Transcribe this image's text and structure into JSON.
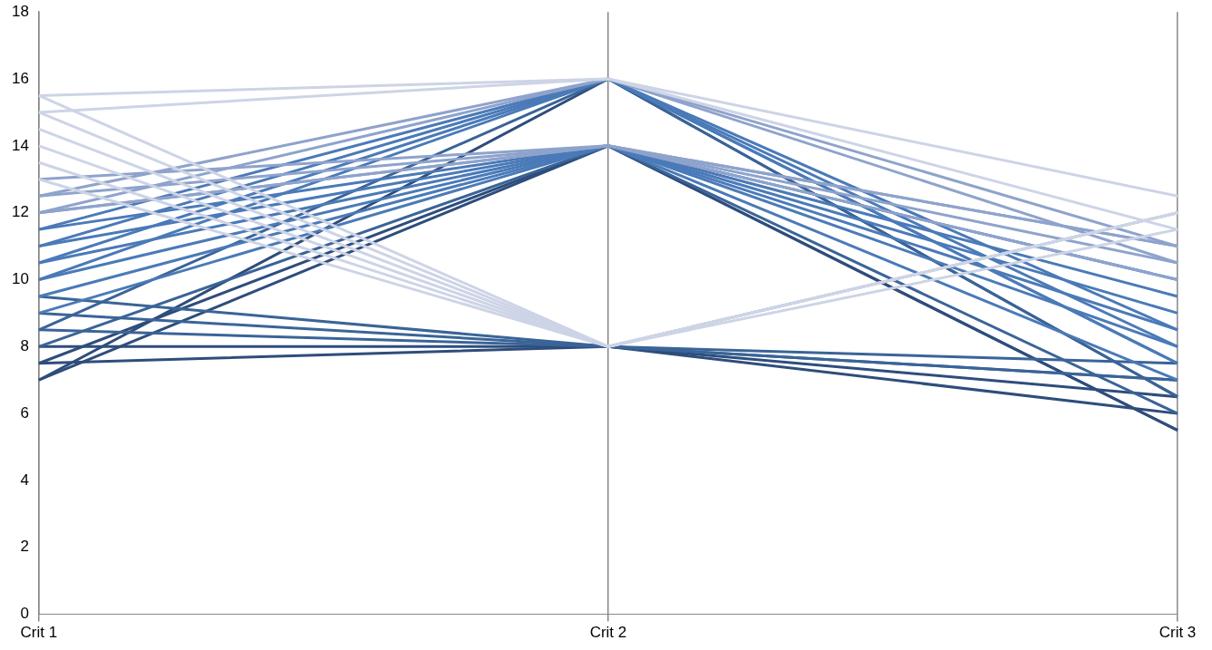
{
  "chart_data": {
    "type": "line",
    "categories": [
      "Crit 1",
      "Crit 2",
      "Crit 3"
    ],
    "series": [
      {
        "color": "#cdd4e6",
        "values": [
          15.5,
          16,
          12.5
        ]
      },
      {
        "color": "#cdd4e6",
        "values": [
          15.5,
          8,
          12
        ]
      },
      {
        "color": "#cdd4e6",
        "values": [
          15,
          16,
          11.5
        ]
      },
      {
        "color": "#cdd4e6",
        "values": [
          15,
          8,
          12
        ]
      },
      {
        "color": "#cdd4e6",
        "values": [
          14.5,
          8,
          12
        ]
      },
      {
        "color": "#cdd4e6",
        "values": [
          14,
          8,
          12
        ]
      },
      {
        "color": "#cdd4e6",
        "values": [
          13.5,
          8,
          12
        ]
      },
      {
        "color": "#cdd4e6",
        "values": [
          13,
          8,
          11.5
        ]
      },
      {
        "color": "#8ea3cc",
        "values": [
          12,
          16,
          11
        ]
      },
      {
        "color": "#8ea3cc",
        "values": [
          12,
          14,
          11
        ]
      },
      {
        "color": "#8ea3cc",
        "values": [
          12,
          14,
          10.5
        ]
      },
      {
        "color": "#8ea3cc",
        "values": [
          13,
          14,
          11
        ]
      },
      {
        "color": "#8ea3cc",
        "values": [
          12.5,
          16,
          10.5
        ]
      },
      {
        "color": "#8ea3cc",
        "values": [
          12.5,
          14,
          10
        ]
      },
      {
        "color": "#4a7ab8",
        "values": [
          11.5,
          14,
          10
        ]
      },
      {
        "color": "#4a7ab8",
        "values": [
          11.5,
          16,
          8.5
        ]
      },
      {
        "color": "#4a7ab8",
        "values": [
          11,
          14,
          8.5
        ]
      },
      {
        "color": "#4a7ab8",
        "values": [
          11,
          16,
          8
        ]
      },
      {
        "color": "#4a7ab8",
        "values": [
          10.5,
          14,
          8
        ]
      },
      {
        "color": "#4a7ab8",
        "values": [
          10.5,
          16,
          7.5
        ]
      },
      {
        "color": "#4a7ab8",
        "values": [
          10,
          14,
          9.5
        ]
      },
      {
        "color": "#4a7ab8",
        "values": [
          10,
          16,
          7.5
        ]
      },
      {
        "color": "#4a7ab8",
        "values": [
          9.5,
          14,
          9
        ]
      },
      {
        "color": "#4a7ab8",
        "values": [
          9,
          14,
          7
        ]
      },
      {
        "color": "#3a6498",
        "values": [
          9.5,
          8,
          7.5
        ]
      },
      {
        "color": "#3a6498",
        "values": [
          9,
          8,
          7
        ]
      },
      {
        "color": "#3a6498",
        "values": [
          8.5,
          8,
          7
        ]
      },
      {
        "color": "#3a6498",
        "values": [
          8.5,
          16,
          6.5
        ]
      },
      {
        "color": "#3a6498",
        "values": [
          8,
          14,
          6
        ]
      },
      {
        "color": "#2e4d7c",
        "values": [
          8,
          8,
          6.5
        ]
      },
      {
        "color": "#2e4d7c",
        "values": [
          7.5,
          8,
          6
        ]
      },
      {
        "color": "#2e4d7c",
        "values": [
          7.5,
          14,
          5.5
        ]
      },
      {
        "color": "#2e4d7c",
        "values": [
          7,
          16,
          6.5
        ]
      },
      {
        "color": "#2e4d7c",
        "values": [
          7,
          14,
          5.5
        ]
      }
    ],
    "ylim": [
      0,
      18
    ],
    "yticks": [
      0,
      2,
      4,
      6,
      8,
      10,
      12,
      14,
      16,
      18
    ],
    "grid": "x",
    "legend": false,
    "marker": "none",
    "line_style": "solid"
  }
}
